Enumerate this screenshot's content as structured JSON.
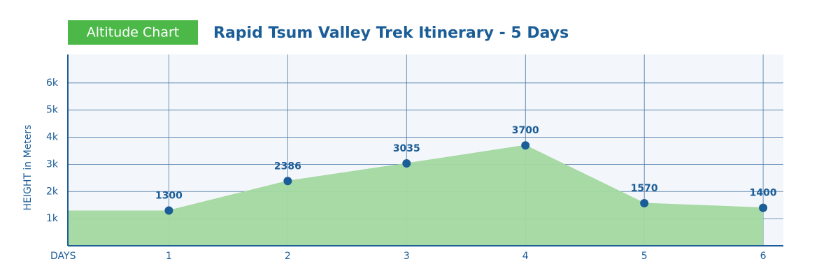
{
  "chart_data": {
    "type": "area",
    "badge": "Altitude Chart",
    "title": "Rapid Tsum Valley Trek Itinerary - 5 Days",
    "x_label": "DAYS",
    "y_label": "HEIGHT in Meters",
    "x": [
      1,
      2,
      3,
      4,
      5,
      6
    ],
    "series": [
      {
        "color": "#a3d8a0",
        "values": [
          1300,
          2386,
          3035,
          3700,
          1570,
          1400
        ]
      }
    ],
    "xlim": [
      0.15,
      6.17
    ],
    "xticks": [
      1,
      2,
      3,
      4,
      5,
      6
    ],
    "ylim": [
      0,
      7050
    ],
    "yticks": [
      {
        "value": 1000,
        "label": "1k"
      },
      {
        "value": 2000,
        "label": "2k"
      },
      {
        "value": 3000,
        "label": "3k"
      },
      {
        "value": 4000,
        "label": "4k"
      },
      {
        "value": 5000,
        "label": "5k"
      },
      {
        "value": 6000,
        "label": "6k"
      }
    ],
    "grid": true,
    "marker_color": "#1b5d97"
  }
}
